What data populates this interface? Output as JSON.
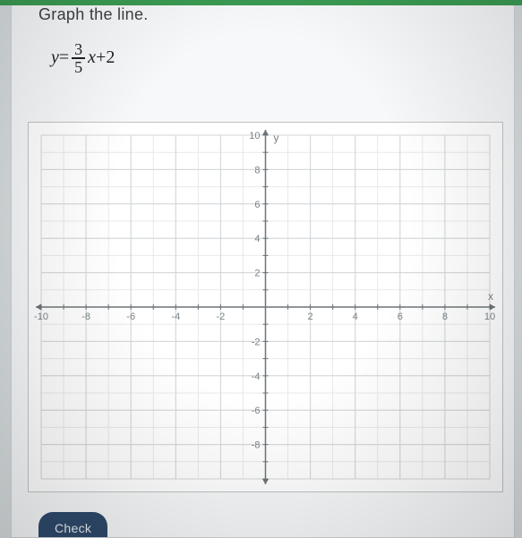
{
  "instruction": "Graph the line.",
  "equation": {
    "lhs_var": "y",
    "equals": "=",
    "frac_num": "3",
    "frac_den": "5",
    "rhs_var": "x",
    "plus": "+",
    "constant": "2"
  },
  "graph": {
    "type": "cartesian-grid",
    "xlim": [
      -10,
      10
    ],
    "ylim": [
      -10,
      10
    ],
    "xtick_step": 2,
    "ytick_step": 2,
    "minor_step": 1,
    "x_axis_label": "x",
    "y_axis_label": "y",
    "x_tick_labels": [
      "-10",
      "-8",
      "-6",
      "-4",
      "-2",
      "2",
      "4",
      "6",
      "8",
      "10"
    ],
    "y_tick_labels_pos": [
      "2",
      "4",
      "6",
      "8",
      "10"
    ],
    "y_tick_labels_neg": [
      "-2",
      "-4",
      "-6",
      "-8"
    ],
    "background_color": "#ffffff",
    "minor_grid_color": "#e7e9eb",
    "major_grid_color": "#d2d6d9",
    "axis_color": "#6d7478",
    "tick_label_color": "#7a8186",
    "tick_label_fontsize": 11,
    "axis_label_fontsize": 12,
    "axis_linewidth": 1.5,
    "arrow_size": 6
  },
  "check_button_label": "Check",
  "colors": {
    "page_bg": "#d8dde0",
    "panel_bg": "#f7f8f9",
    "header_bar": "#3a9b52",
    "button_bg": "#2e4a6b",
    "button_text": "#e8edf3",
    "text": "#3b3f42"
  }
}
